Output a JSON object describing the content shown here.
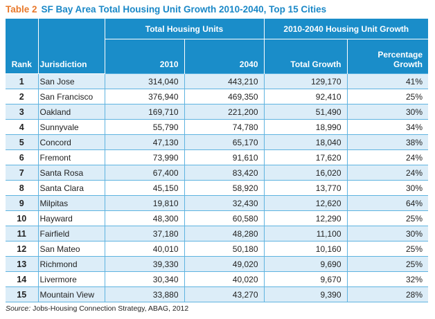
{
  "title": {
    "label": "Table 2",
    "text": "SF Bay Area Total Housing Unit Growth 2010-2040, Top 15 Cities"
  },
  "headers": {
    "rank": "Rank",
    "jurisdiction": "Jurisdiction",
    "group_units": "Total Housing Units",
    "group_growth": "2010-2040 Housing Unit Growth",
    "y2010": "2010",
    "y2040": "2040",
    "total_growth": "Total Growth",
    "pct_growth_line1": "Percentage",
    "pct_growth_line2": "Growth"
  },
  "rows": [
    {
      "rank": "1",
      "city": "San Jose",
      "u2010": "314,040",
      "u2040": "443,210",
      "growth": "129,170",
      "pct": "41%"
    },
    {
      "rank": "2",
      "city": "San Francisco",
      "u2010": "376,940",
      "u2040": "469,350",
      "growth": "92,410",
      "pct": "25%"
    },
    {
      "rank": "3",
      "city": "Oakland",
      "u2010": "169,710",
      "u2040": "221,200",
      "growth": "51,490",
      "pct": "30%"
    },
    {
      "rank": "4",
      "city": "Sunnyvale",
      "u2010": "55,790",
      "u2040": "74,780",
      "growth": "18,990",
      "pct": "34%"
    },
    {
      "rank": "5",
      "city": "Concord",
      "u2010": "47,130",
      "u2040": "65,170",
      "growth": "18,040",
      "pct": "38%"
    },
    {
      "rank": "6",
      "city": "Fremont",
      "u2010": "73,990",
      "u2040": "91,610",
      "growth": "17,620",
      "pct": "24%"
    },
    {
      "rank": "7",
      "city": "Santa Rosa",
      "u2010": "67,400",
      "u2040": "83,420",
      "growth": "16,020",
      "pct": "24%"
    },
    {
      "rank": "8",
      "city": "Santa Clara",
      "u2010": "45,150",
      "u2040": "58,920",
      "growth": "13,770",
      "pct": "30%"
    },
    {
      "rank": "9",
      "city": "Milpitas",
      "u2010": "19,810",
      "u2040": "32,430",
      "growth": "12,620",
      "pct": "64%"
    },
    {
      "rank": "10",
      "city": "Hayward",
      "u2010": "48,300",
      "u2040": "60,580",
      "growth": "12,290",
      "pct": "25%"
    },
    {
      "rank": "11",
      "city": "Fairfield",
      "u2010": "37,180",
      "u2040": "48,280",
      "growth": "11,100",
      "pct": "30%"
    },
    {
      "rank": "12",
      "city": "San Mateo",
      "u2010": "40,010",
      "u2040": "50,180",
      "growth": "10,160",
      "pct": "25%"
    },
    {
      "rank": "13",
      "city": "Richmond",
      "u2010": "39,330",
      "u2040": "49,020",
      "growth": "9,690",
      "pct": "25%"
    },
    {
      "rank": "14",
      "city": "Livermore",
      "u2010": "30,340",
      "u2040": "40,020",
      "growth": "9,670",
      "pct": "32%"
    },
    {
      "rank": "15",
      "city": "Mountain View",
      "u2010": "33,880",
      "u2040": "43,270",
      "growth": "9,390",
      "pct": "28%"
    }
  ],
  "source": {
    "prefix": "Source: ",
    "text": "Jobs-Housing Connection Strategy, ABAG, 2012"
  },
  "colors": {
    "header_bg": "#1a8dc9",
    "title_blue": "#1a88c7",
    "title_label_orange": "#e8782a",
    "row_shade": "#dcedf8"
  }
}
